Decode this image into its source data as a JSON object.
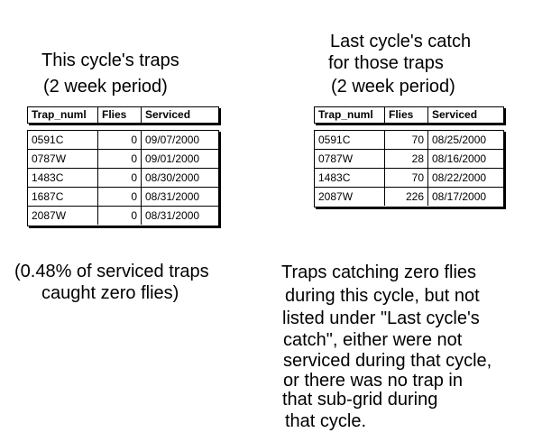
{
  "left_heading": {
    "line1": "This cycle's traps",
    "line2": "(2 week period)"
  },
  "right_heading": {
    "line1": "Last cycle's catch",
    "line2": "for those traps",
    "line3": "(2 week period)"
  },
  "columns": [
    "Trap_numl",
    "Flies",
    "Serviced"
  ],
  "this_cycle_rows": [
    {
      "trap": "0591C",
      "flies": "0",
      "serviced": "09/07/2000"
    },
    {
      "trap": "0787W",
      "flies": "0",
      "serviced": "09/01/2000"
    },
    {
      "trap": "1483C",
      "flies": "0",
      "serviced": "08/30/2000"
    },
    {
      "trap": "1687C",
      "flies": "0",
      "serviced": "08/31/2000"
    },
    {
      "trap": "2087W",
      "flies": "0",
      "serviced": "08/31/2000"
    }
  ],
  "last_cycle_rows": [
    {
      "trap": "0591C",
      "flies": "70",
      "serviced": "08/25/2000"
    },
    {
      "trap": "0787W",
      "flies": "28",
      "serviced": "08/16/2000"
    },
    {
      "trap": "1483C",
      "flies": "70",
      "serviced": "08/22/2000"
    },
    {
      "trap": "2087W",
      "flies": "226",
      "serviced": "08/17/2000"
    }
  ],
  "left_note": {
    "line1": "(0.48% of serviced traps",
    "line2": "caught zero flies)"
  },
  "right_note": [
    "Traps catching zero flies",
    "during this cycle, but not",
    "listed under \"Last cycle's",
    "catch\", either were not",
    "serviced during that cycle,",
    "or there was no trap in",
    "that sub-grid during",
    "that cycle."
  ]
}
